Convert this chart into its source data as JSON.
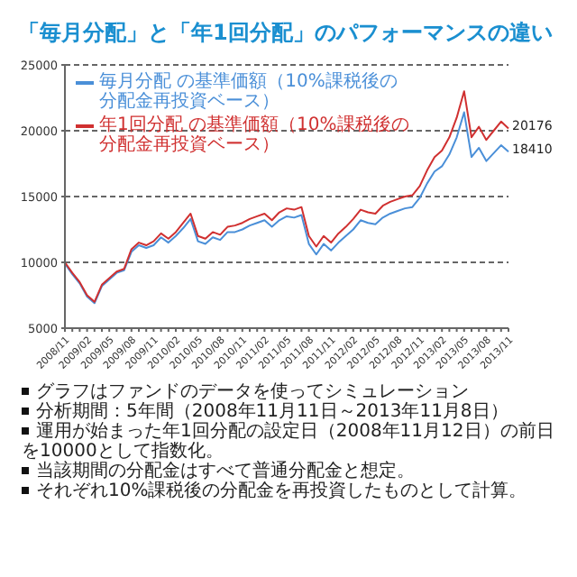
{
  "chart_data": {
    "type": "line",
    "title": "「毎月分配」と「年1回分配」のパフォーマンスの違い",
    "categories": [
      "2008/11",
      null,
      null,
      "2009/02",
      null,
      null,
      "2009/05",
      null,
      null,
      "2009/08",
      null,
      null,
      "2009/11",
      null,
      null,
      "2010/02",
      null,
      null,
      "2010/05",
      null,
      null,
      "2010/08",
      null,
      null,
      "2010/11",
      null,
      null,
      "2011/02",
      null,
      null,
      "2011/05",
      null,
      null,
      "2011/08",
      null,
      null,
      "2011/11",
      null,
      null,
      "2012/02",
      null,
      null,
      "2012/05",
      null,
      null,
      "2012/08",
      null,
      null,
      "2012/11",
      null,
      null,
      "2013/02",
      null,
      null,
      "2013/05",
      null,
      null,
      "2013/08",
      null,
      null,
      "2013/11"
    ],
    "series": [
      {
        "name": "毎月分配 の基準価額（10%課税後の分配金再投資ベース）",
        "color": "#4a8fd8",
        "values": [
          9900,
          9100,
          8400,
          7400,
          6900,
          8200,
          8700,
          9200,
          9400,
          10800,
          11300,
          11100,
          11300,
          11900,
          11500,
          12000,
          12600,
          13300,
          11600,
          11400,
          11900,
          11700,
          12300,
          12300,
          12500,
          12800,
          13000,
          13200,
          12700,
          13200,
          13500,
          13400,
          13600,
          11400,
          10600,
          11400,
          10900,
          11500,
          12000,
          12500,
          13200,
          13000,
          12900,
          13400,
          13700,
          13900,
          14100,
          14200,
          14900,
          16000,
          16900,
          17300,
          18200,
          19500,
          21400,
          18000,
          18700,
          17700,
          18300,
          18900,
          18410
        ]
      },
      {
        "name": "年1回分配 の基準価額（10%課税後の分配金再投資ベース）",
        "color": "#d03030",
        "values": [
          10000,
          9200,
          8500,
          7500,
          7000,
          8300,
          8800,
          9300,
          9500,
          11000,
          11500,
          11300,
          11600,
          12200,
          11800,
          12300,
          13000,
          13700,
          12000,
          11800,
          12300,
          12100,
          12700,
          12800,
          13000,
          13300,
          13500,
          13700,
          13200,
          13800,
          14100,
          14000,
          14200,
          12000,
          11200,
          12000,
          11500,
          12200,
          12700,
          13300,
          14000,
          13800,
          13700,
          14300,
          14600,
          14800,
          15000,
          15100,
          15800,
          17000,
          18000,
          18500,
          19500,
          21000,
          23000,
          19500,
          20300,
          19300,
          20000,
          20700,
          20176
        ]
      }
    ],
    "ylim": [
      5000,
      25000
    ],
    "yticks": [
      5000,
      10000,
      15000,
      20000,
      25000
    ],
    "grid": "y",
    "legend": "top left",
    "marker": "none",
    "line_style": "solid",
    "annotations": [
      "20176",
      "18410",
      "グラフはファンドのデータを使ってシミュレーション",
      "分析期間：5年間（2008年11月11日～2013年11月8日）",
      "運用が始まった年1回分配の設定日（2008年11月12日）の前日を10000として指数化。",
      "当該期間の分配金はすべて普通分配金と想定。",
      "それぞれ10%課税後の分配金を再投資したものとして計算。"
    ]
  }
}
